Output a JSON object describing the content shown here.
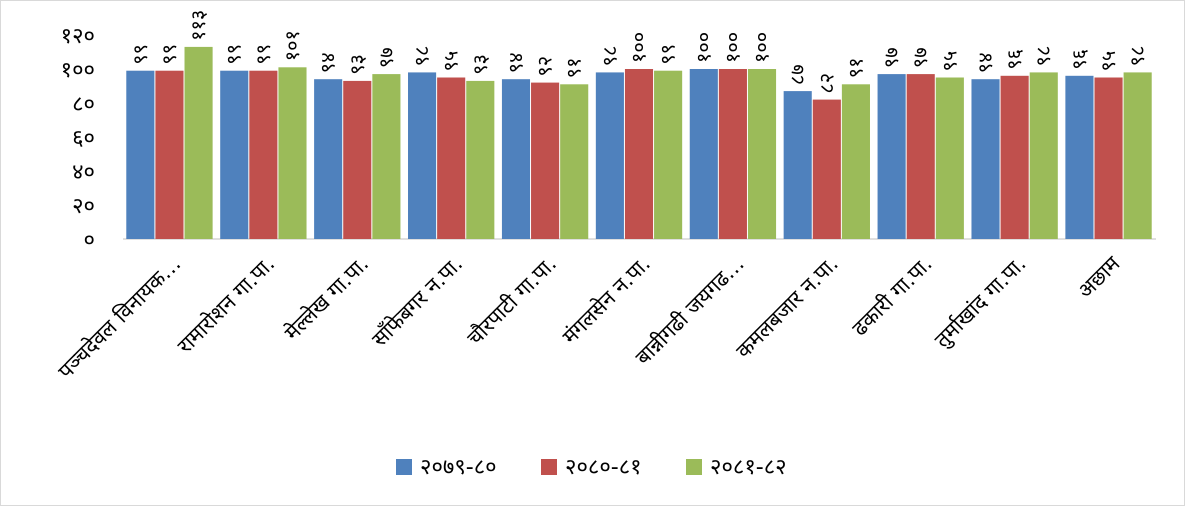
{
  "chart_data": {
    "type": "bar",
    "categories": [
      "पञ्चदेवल विनायक…",
      "रामारोशन गा.पा.",
      "मेल्लेख गा.पा.",
      "साँफेबगर न.पा.",
      "चौरपाटी गा.पा.",
      "मंगलसेन न.पा.",
      "बान्नीगढी जयगढ…",
      "कमलबजार न.पा.",
      "ढकारी गा.पा.",
      "तुर्माखांद गा.पा.",
      "अछाम"
    ],
    "series": [
      {
        "name": "२०७९-८०",
        "color": "#4f81bd",
        "values": [
          99,
          99,
          94,
          98,
          94,
          98,
          100,
          87,
          97,
          94,
          96
        ],
        "labels": [
          "९९",
          "९९",
          "९४",
          "९८",
          "९४",
          "९८",
          "१००",
          "८७",
          "९७",
          "९४",
          "९६"
        ]
      },
      {
        "name": "२०८०-८१",
        "color": "#c0504d",
        "values": [
          99,
          99,
          93,
          95,
          92,
          100,
          100,
          82,
          97,
          96,
          95
        ],
        "labels": [
          "९९",
          "९९",
          "९३",
          "९५",
          "९२",
          "१००",
          "१००",
          "८२",
          "९७",
          "९६",
          "९५"
        ]
      },
      {
        "name": "२०८१-८२",
        "color": "#9bbb59",
        "values": [
          113,
          101,
          97,
          93,
          91,
          99,
          100,
          91,
          95,
          98,
          98
        ],
        "labels": [
          "११३",
          "१०१",
          "९७",
          "९३",
          "९१",
          "९९",
          "१००",
          "९१",
          "९५",
          "९८",
          "९८"
        ]
      }
    ],
    "yticks": [
      0,
      20,
      40,
      60,
      80,
      100,
      120
    ],
    "ytick_labels": [
      "०",
      "२०",
      "४०",
      "६०",
      "८०",
      "१००",
      "१२०"
    ],
    "ylim": [
      0,
      120
    ],
    "grid": false,
    "legend": "bottom",
    "title": "",
    "xlabel": "",
    "ylabel": ""
  }
}
